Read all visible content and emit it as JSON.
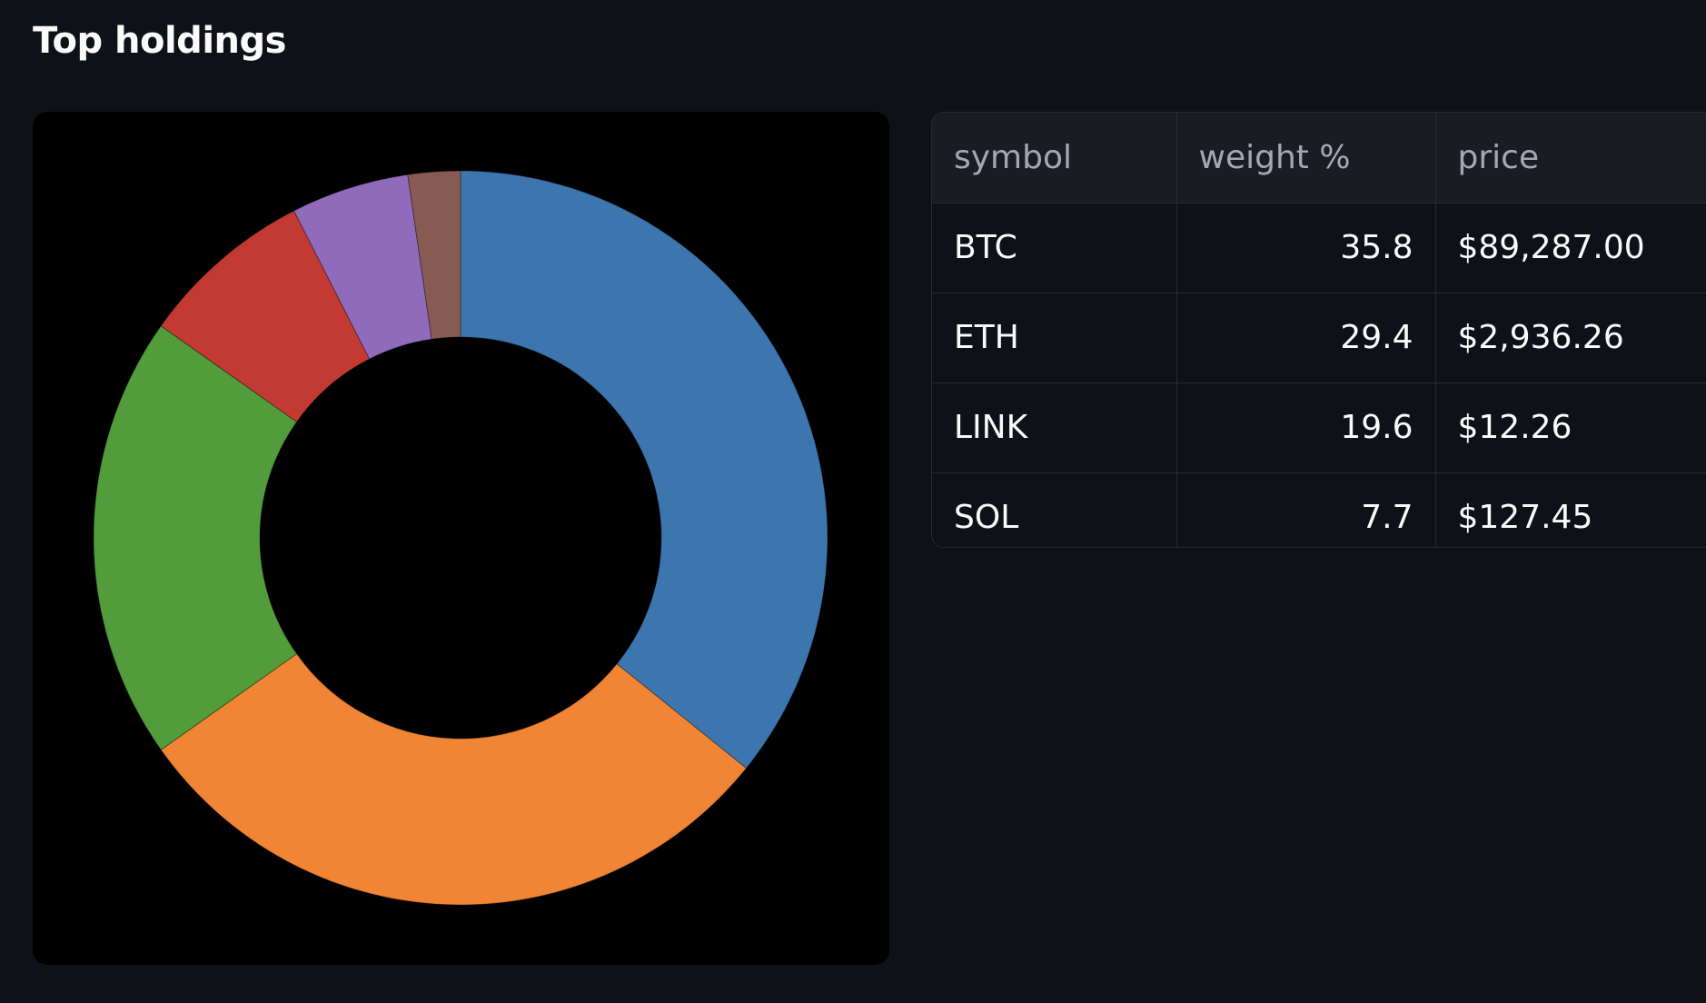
{
  "section_title": "Top holdings",
  "colors": {
    "page_background": "#0e1117",
    "chart_background": "#000000",
    "slices": [
      "#3d76ae",
      "#ef8535",
      "#529c3c",
      "#c23a32",
      "#916bbb",
      "#875b53"
    ]
  },
  "chart_data": {
    "type": "pie",
    "donut": true,
    "legend": "none",
    "slices": [
      {
        "value": 35.8
      },
      {
        "value": 29.4
      },
      {
        "value": 19.6
      },
      {
        "value": 7.7
      },
      {
        "value": 5.2
      },
      {
        "value": 2.3
      }
    ]
  },
  "table": {
    "columns": [
      "symbol",
      "weight %",
      "price"
    ],
    "rows": [
      [
        "BTC",
        "35.8",
        "$89,287.00"
      ],
      [
        "ETH",
        "29.4",
        "$2,936.26"
      ],
      [
        "LINK",
        "19.6",
        "$12.26"
      ],
      [
        "SOL",
        "7.7",
        "$127.45"
      ]
    ]
  }
}
